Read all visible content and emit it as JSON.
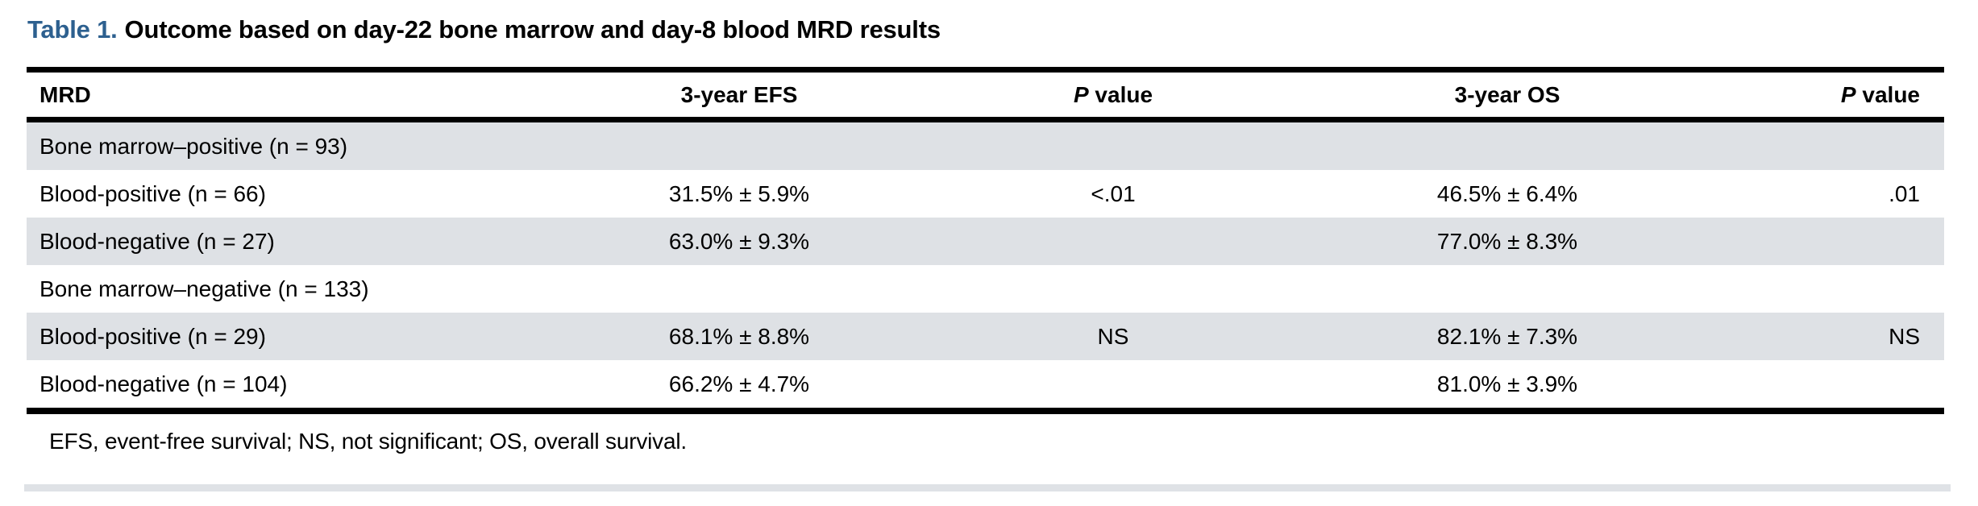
{
  "caption": {
    "label": "Table 1.",
    "title": "Outcome based on day-22 bone marrow and day-8 blood MRD results"
  },
  "header": {
    "mrd": "MRD",
    "efs": "3-year EFS",
    "p1": {
      "p": "P",
      "rest": "value"
    },
    "os": "3-year OS",
    "p2": {
      "p": "P",
      "rest": "value"
    }
  },
  "rows": [
    {
      "mrd": "Bone marrow–positive (n = 93)",
      "efs": "",
      "p1": "",
      "os": "",
      "p2": ""
    },
    {
      "mrd": "Blood-positive (n = 66)",
      "efs": "31.5% ± 5.9%",
      "p1": "<.01",
      "os": "46.5% ± 6.4%",
      "p2": ".01"
    },
    {
      "mrd": "Blood-negative (n = 27)",
      "efs": "63.0% ± 9.3%",
      "p1": "",
      "os": "77.0% ± 8.3%",
      "p2": ""
    },
    {
      "mrd": "Bone marrow–negative (n = 133)",
      "efs": "",
      "p1": "",
      "os": "",
      "p2": ""
    },
    {
      "mrd": "Blood-positive (n = 29)",
      "efs": "68.1% ± 8.8%",
      "p1": "NS",
      "os": "82.1% ± 7.3%",
      "p2": "NS"
    },
    {
      "mrd": "Blood-negative (n = 104)",
      "efs": "66.2% ± 4.7%",
      "p1": "",
      "os": "81.0% ± 3.9%",
      "p2": ""
    }
  ],
  "footnote": "EFS, event-free survival; NS, not significant; OS, overall survival.",
  "colors": {
    "caption_blue": "#2d608f",
    "row_shade": "#dee1e5",
    "rule": "#000000",
    "bottom_strip": "#dfe2e6"
  }
}
